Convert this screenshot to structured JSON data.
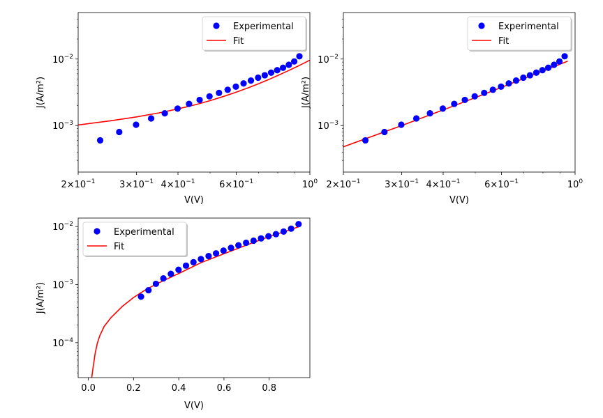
{
  "chart_data": [
    {
      "type": "scatter",
      "title": "",
      "xlabel": "V(V)",
      "ylabel": "J(A/m²)",
      "xscale": "log",
      "yscale": "log",
      "xlim": [
        0.2,
        1.0
      ],
      "ylim": [
        0.0002,
        0.05
      ],
      "x_ticks": [
        {
          "value": 0.2,
          "base": "2×10",
          "exp": "−1"
        },
        {
          "value": 0.3,
          "base": "3×10",
          "exp": "−1"
        },
        {
          "value": 0.4,
          "base": "4×10",
          "exp": "−1"
        },
        {
          "value": 0.6,
          "base": "6×10",
          "exp": "−1"
        },
        {
          "value": 1.0,
          "base": "10",
          "exp": "0"
        }
      ],
      "y_ticks": [
        {
          "value": 0.001,
          "base": "10",
          "exp": "−3"
        },
        {
          "value": 0.01,
          "base": "10",
          "exp": "−2"
        }
      ],
      "legend": {
        "position": "top-right",
        "entries": [
          "Experimental",
          "Fit"
        ]
      },
      "series": [
        {
          "name": "Experimental",
          "kind": "markers",
          "color": "#0000ff",
          "x": [
            0.233,
            0.266,
            0.299,
            0.332,
            0.365,
            0.399,
            0.432,
            0.465,
            0.498,
            0.532,
            0.565,
            0.598,
            0.631,
            0.664,
            0.698,
            0.731,
            0.764,
            0.797,
            0.83,
            0.864,
            0.897,
            0.93
          ],
          "y": [
            0.0006,
            0.0008,
            0.00103,
            0.00128,
            0.00153,
            0.0018,
            0.00212,
            0.00243,
            0.00275,
            0.0031,
            0.00345,
            0.00385,
            0.0043,
            0.00475,
            0.00525,
            0.0057,
            0.00625,
            0.0068,
            0.0074,
            0.0082,
            0.0092,
            0.011
          ]
        },
        {
          "name": "Fit",
          "kind": "line",
          "color": "#ff0000",
          "x": [
            0.2,
            0.25,
            0.3,
            0.35,
            0.4,
            0.45,
            0.5,
            0.55,
            0.6,
            0.65,
            0.7,
            0.75,
            0.8,
            0.85,
            0.9,
            0.95,
            1.0
          ],
          "y": [
            0.00102,
            0.00118,
            0.00135,
            0.00155,
            0.00178,
            0.00205,
            0.00237,
            0.00275,
            0.00318,
            0.00368,
            0.00425,
            0.0049,
            0.00565,
            0.00648,
            0.00742,
            0.00845,
            0.0096
          ]
        }
      ]
    },
    {
      "type": "scatter",
      "title": "",
      "xlabel": "V(V)",
      "ylabel": "J(A/m²)",
      "xscale": "log",
      "yscale": "log",
      "xlim": [
        0.2,
        1.0
      ],
      "ylim": [
        0.0002,
        0.05
      ],
      "x_ticks": [
        {
          "value": 0.2,
          "base": "2×10",
          "exp": "−1"
        },
        {
          "value": 0.3,
          "base": "3×10",
          "exp": "−1"
        },
        {
          "value": 0.4,
          "base": "4×10",
          "exp": "−1"
        },
        {
          "value": 0.6,
          "base": "6×10",
          "exp": "−1"
        },
        {
          "value": 1.0,
          "base": "10",
          "exp": "0"
        }
      ],
      "y_ticks": [
        {
          "value": 0.001,
          "base": "10",
          "exp": "−3"
        },
        {
          "value": 0.01,
          "base": "10",
          "exp": "−2"
        }
      ],
      "legend": {
        "position": "top-right",
        "entries": [
          "Experimental",
          "Fit"
        ]
      },
      "series": [
        {
          "name": "Experimental",
          "kind": "markers",
          "color": "#0000ff",
          "x": [
            0.233,
            0.266,
            0.299,
            0.332,
            0.365,
            0.399,
            0.432,
            0.465,
            0.498,
            0.532,
            0.565,
            0.598,
            0.631,
            0.664,
            0.698,
            0.731,
            0.764,
            0.797,
            0.83,
            0.864,
            0.897,
            0.93
          ],
          "y": [
            0.0006,
            0.0008,
            0.00103,
            0.00128,
            0.00153,
            0.0018,
            0.00212,
            0.00243,
            0.00275,
            0.0031,
            0.00345,
            0.00385,
            0.0043,
            0.00475,
            0.00525,
            0.0057,
            0.00625,
            0.0068,
            0.0074,
            0.0082,
            0.0092,
            0.011
          ]
        },
        {
          "name": "Fit",
          "kind": "line",
          "color": "#ff0000",
          "x": [
            0.2,
            0.3,
            0.4,
            0.5,
            0.6,
            0.7,
            0.8,
            0.9,
            0.95
          ],
          "y": [
            0.00048,
            0.001,
            0.00172,
            0.00263,
            0.00375,
            0.00508,
            0.0066,
            0.00835,
            0.0093
          ]
        }
      ]
    },
    {
      "type": "scatter",
      "title": "",
      "xlabel": "V(V)",
      "ylabel": "J(A/m²)",
      "xscale": "linear",
      "yscale": "log",
      "xlim": [
        -0.045,
        0.98
      ],
      "ylim": [
        2.5e-05,
        0.014
      ],
      "x_ticks": [
        {
          "value": 0.0,
          "label": "0.0"
        },
        {
          "value": 0.2,
          "label": "0.2"
        },
        {
          "value": 0.4,
          "label": "0.4"
        },
        {
          "value": 0.6,
          "label": "0.6"
        },
        {
          "value": 0.8,
          "label": "0.8"
        }
      ],
      "y_ticks": [
        {
          "value": 0.0001,
          "base": "10",
          "exp": "−4"
        },
        {
          "value": 0.001,
          "base": "10",
          "exp": "−3"
        },
        {
          "value": 0.01,
          "base": "10",
          "exp": "−2"
        }
      ],
      "legend": {
        "position": "top-left",
        "entries": [
          "Experimental",
          "Fit"
        ]
      },
      "series": [
        {
          "name": "Experimental",
          "kind": "markers",
          "color": "#0000ff",
          "x": [
            0.233,
            0.266,
            0.299,
            0.332,
            0.365,
            0.399,
            0.432,
            0.465,
            0.498,
            0.532,
            0.565,
            0.598,
            0.631,
            0.664,
            0.698,
            0.731,
            0.764,
            0.797,
            0.83,
            0.864,
            0.897,
            0.93
          ],
          "y": [
            0.00062,
            0.0008,
            0.00103,
            0.00128,
            0.00153,
            0.0018,
            0.00212,
            0.00243,
            0.00275,
            0.0031,
            0.00345,
            0.00385,
            0.0043,
            0.00475,
            0.00525,
            0.0057,
            0.00625,
            0.0068,
            0.0074,
            0.0082,
            0.0092,
            0.011
          ]
        },
        {
          "name": "Fit",
          "kind": "line",
          "color": "#ff0000",
          "x": [
            0.015,
            0.02,
            0.03,
            0.04,
            0.05,
            0.07,
            0.1,
            0.15,
            0.2,
            0.25,
            0.3,
            0.4,
            0.5,
            0.6,
            0.7,
            0.8,
            0.9,
            0.93
          ],
          "y": [
            2.5e-05,
            3.5e-05,
            6.5e-05,
            9.8e-05,
            0.00013,
            0.00019,
            0.00027,
            0.00042,
            0.0006,
            0.0008,
            0.00102,
            0.00155,
            0.0024,
            0.0034,
            0.0048,
            0.0067,
            0.009,
            0.0099
          ]
        }
      ]
    }
  ],
  "colors": {
    "experimental": "#0000ff",
    "fit": "#ff0000",
    "axes": "#000000"
  }
}
